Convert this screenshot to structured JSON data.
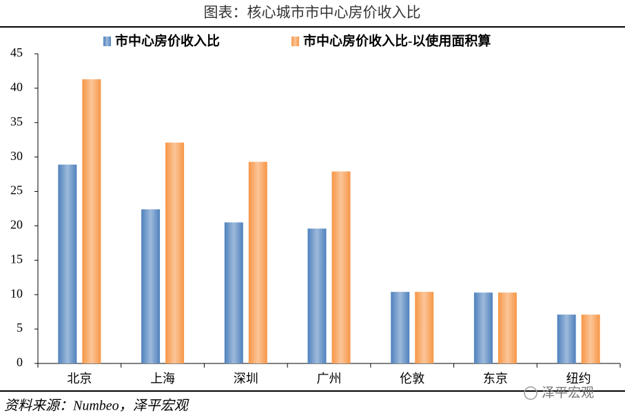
{
  "chart_data": {
    "type": "bar",
    "title": "图表：核心城市市中心房价收入比",
    "categories": [
      "北京",
      "上海",
      "深圳",
      "广州",
      "伦敦",
      "东京",
      "纽约"
    ],
    "series": [
      {
        "name": "市中心房价收入比",
        "color": "#4f81bd",
        "values": [
          28.9,
          22.4,
          20.5,
          19.6,
          10.4,
          10.3,
          7.1
        ]
      },
      {
        "name": "市中心房价收入比-以使用面积算",
        "color": "#f79646",
        "values": [
          41.3,
          32.1,
          29.3,
          27.9,
          10.4,
          10.3,
          7.1
        ]
      }
    ],
    "ylim": [
      0,
      45
    ],
    "yticks": [
      0,
      5,
      10,
      15,
      20,
      25,
      30,
      35,
      40,
      45
    ],
    "legend": "top",
    "source": "资料来源：Numbeo，泽平宏观",
    "watermark": "泽平宏观"
  }
}
